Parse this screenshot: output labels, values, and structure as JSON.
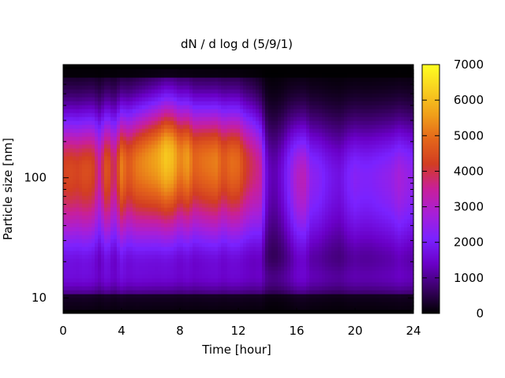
{
  "chart_data": {
    "type": "heatmap",
    "title": "dN / d log d (5/9/1)",
    "xlabel": "Time [hour]",
    "ylabel": "Particle size [nm]",
    "xlim": [
      0,
      24
    ],
    "x_ticks": [
      0,
      4,
      8,
      12,
      16,
      20,
      24
    ],
    "x_tick_labels": [
      "0",
      "4",
      "8",
      "12",
      "16",
      "20",
      "24"
    ],
    "y_scale": "log",
    "ylim": [
      8,
      800
    ],
    "y_ticks": [
      10,
      100
    ],
    "y_tick_labels": [
      "10",
      "100"
    ],
    "colorbar": {
      "range": [
        0,
        7000
      ],
      "ticks": [
        0,
        1000,
        2000,
        3000,
        4000,
        5000,
        6000,
        7000
      ],
      "tick_labels": [
        "0",
        "1000",
        "2000",
        "3000",
        "4000",
        "5000",
        "6000",
        "7000"
      ],
      "palette": [
        "#000000",
        "#3a0066",
        "#6a00c8",
        "#7a22ff",
        "#a71fd8",
        "#c81f9a",
        "#d23d22",
        "#e4661a",
        "#f0a01a",
        "#f8d020",
        "#ffff20"
      ]
    },
    "time_hours": [
      0,
      0.5,
      1,
      1.5,
      2,
      2.5,
      3,
      3.5,
      4,
      4.5,
      5,
      5.5,
      6,
      6.5,
      7,
      7.5,
      8,
      8.5,
      9,
      9.5,
      10,
      10.5,
      11,
      11.5,
      12,
      12.5,
      13,
      13.5,
      14,
      14.5,
      15,
      15.5,
      16,
      16.5,
      17,
      17.5,
      18,
      18.5,
      19,
      19.5,
      20,
      20.5,
      21,
      21.5,
      22,
      22.5,
      23,
      23.5,
      24
    ],
    "peak_diameter_nm": [
      115,
      115,
      115,
      115,
      118,
      118,
      120,
      122,
      125,
      128,
      130,
      135,
      140,
      145,
      150,
      150,
      148,
      145,
      142,
      140,
      138,
      138,
      138,
      135,
      135,
      130,
      128,
      115,
      105,
      105,
      105,
      105,
      100,
      100,
      100,
      100,
      100,
      100,
      100,
      100,
      100,
      100,
      100,
      100,
      100,
      100,
      100,
      100,
      100
    ],
    "peak_concentration": [
      4300,
      4400,
      4300,
      4500,
      4400,
      3400,
      4800,
      3600,
      5200,
      4600,
      5100,
      5300,
      5500,
      5700,
      6200,
      6000,
      5200,
      5600,
      4800,
      5000,
      5100,
      5200,
      4600,
      5000,
      4900,
      4200,
      3800,
      3500,
      1400,
      1200,
      1600,
      2300,
      3000,
      3200,
      2400,
      2300,
      2000,
      1800,
      1700,
      2100,
      2300,
      2200,
      2200,
      2300,
      2400,
      2500,
      2800,
      2600,
      2400
    ]
  }
}
